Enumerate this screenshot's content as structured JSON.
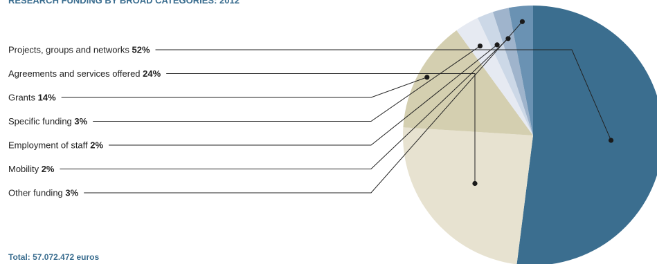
{
  "chart_data": {
    "type": "pie",
    "title": "RESEARCH FUNDING BY BROAD CATEGORIES: 2012",
    "total_label": "Total: 57.072.472 euros",
    "slices": [
      {
        "label": "Projects, groups and networks",
        "pct_label": "52%",
        "value": 52,
        "color": "#3b6e8f"
      },
      {
        "label": "Agreements and services offered",
        "pct_label": "24%",
        "value": 24,
        "color": "#e7e2d0"
      },
      {
        "label": "Grants",
        "pct_label": "14%",
        "value": 14,
        "color": "#d4cfb0"
      },
      {
        "label": "Specific funding",
        "pct_label": "3%",
        "value": 3,
        "color": "#e6eaf2"
      },
      {
        "label": "Employment of staff",
        "pct_label": "2%",
        "value": 2,
        "color": "#ccd8e7"
      },
      {
        "label": "Mobility",
        "pct_label": "2%",
        "value": 2,
        "color": "#9fb4cc"
      },
      {
        "label": "Other funding",
        "pct_label": "3%",
        "value": 3,
        "color": "#6a92b3"
      }
    ],
    "legend_placement": "left"
  }
}
